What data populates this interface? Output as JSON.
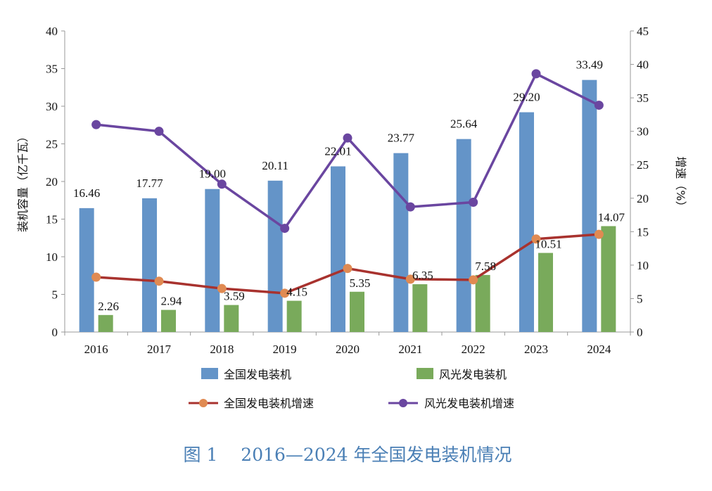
{
  "chart_data": {
    "type": "bar",
    "title": "",
    "caption": "图 1　 2016—2024 年全国发电装机情况",
    "categories": [
      "2016",
      "2017",
      "2018",
      "2019",
      "2020",
      "2021",
      "2022",
      "2023",
      "2024"
    ],
    "ylabel": "装机容量（亿千瓦）",
    "y2label": "增速（%）",
    "ylim": [
      0,
      40
    ],
    "yticks": [
      0,
      5,
      10,
      15,
      20,
      25,
      30,
      35,
      40
    ],
    "y2lim": [
      0,
      45
    ],
    "y2ticks": [
      0,
      5,
      10,
      15,
      20,
      25,
      30,
      35,
      40,
      45
    ],
    "grid": false,
    "legend_placement": "bottom",
    "series": [
      {
        "name": "全国发电装机",
        "type": "bar",
        "axis": "left",
        "color": "#6494c8",
        "values": [
          16.46,
          17.77,
          19.0,
          20.11,
          22.01,
          23.77,
          25.64,
          29.2,
          33.49
        ],
        "labels": [
          "16.46",
          "17.77",
          "19.00",
          "20.11",
          "22.01",
          "23.77",
          "25.64",
          "29.20",
          "33.49"
        ]
      },
      {
        "name": "风光发电装机",
        "type": "bar",
        "axis": "left",
        "color": "#79aa5b",
        "values": [
          2.26,
          2.94,
          3.59,
          4.15,
          5.35,
          6.35,
          7.58,
          10.51,
          14.07
        ],
        "labels": [
          "2.26",
          "2.94",
          "3.59",
          "4.15",
          "5.35",
          "6.35",
          "7.58",
          "10.51",
          "14.07"
        ]
      },
      {
        "name": "全国发电装机增速",
        "type": "line",
        "axis": "right",
        "color": "#a8322e",
        "marker_color": "#e08a52",
        "values": [
          8.2,
          7.6,
          6.5,
          5.8,
          9.5,
          7.9,
          7.8,
          13.9,
          14.6
        ]
      },
      {
        "name": "风光发电装机增速",
        "type": "line",
        "axis": "right",
        "color": "#6a46a0",
        "marker_color": "#6a46a0",
        "values": [
          31.0,
          30.0,
          22.1,
          15.5,
          29.0,
          18.7,
          19.4,
          38.6,
          33.9
        ]
      }
    ]
  }
}
